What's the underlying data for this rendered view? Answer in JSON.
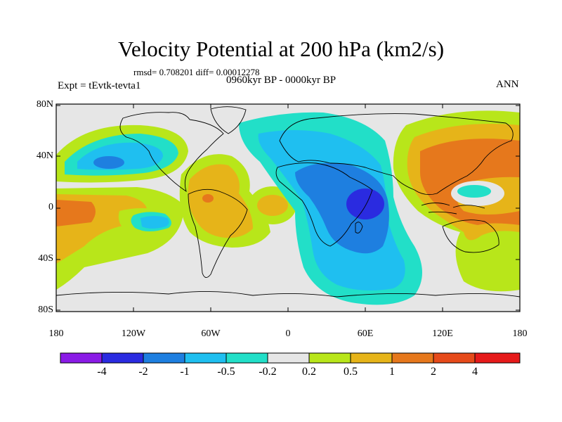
{
  "title": "Velocity Potential at 200 hPa (km2/s)",
  "stats": "rmsd= 0.708201 diff= 0.00012278",
  "period": "0960kyr BP - 0000kyr BP",
  "experiment": "Expt = tEvtk-tevta1",
  "season": "ANN",
  "y_ticks": [
    "80N",
    "40N",
    "0",
    "40S",
    "80S"
  ],
  "x_ticks": [
    "180",
    "120W",
    "60W",
    "0",
    "60E",
    "120E",
    "180"
  ],
  "colorbar": {
    "labels": [
      "-4",
      "-2",
      "-1",
      "-0.5",
      "-0.2",
      "0.2",
      "0.5",
      "1",
      "2",
      "4"
    ],
    "colors": [
      "#8a1be6",
      "#2a2be0",
      "#1e7fe0",
      "#1fbff0",
      "#22dfc8",
      "#e6e6e6",
      "#b8e61a",
      "#e6b419",
      "#e6781c",
      "#e64a1a",
      "#e61a1a"
    ]
  }
}
